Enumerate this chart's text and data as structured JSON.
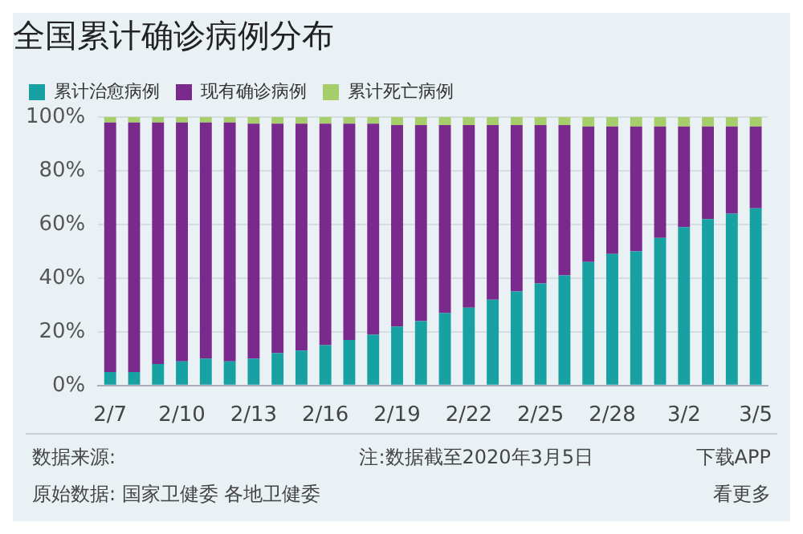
{
  "chart_data": {
    "type": "bar",
    "title": "全国累计确诊病例分布",
    "stacked": true,
    "grid": "y",
    "legend": "top left",
    "categories": [
      "2/7",
      null,
      null,
      "2/10",
      null,
      null,
      "2/13",
      null,
      null,
      "2/16",
      null,
      null,
      "2/19",
      null,
      null,
      "2/22",
      null,
      null,
      "2/25",
      null,
      null,
      "2/28",
      null,
      null,
      "3/2",
      null,
      null,
      "3/5"
    ],
    "series": [
      {
        "name": "累计治愈病例",
        "color": "#17a1a3",
        "values": [
          5,
          5,
          8,
          9,
          10,
          9,
          10,
          12,
          13,
          15,
          17,
          19,
          22,
          24,
          27,
          29,
          32,
          35,
          38,
          41,
          46,
          49,
          50,
          55,
          59,
          62,
          64,
          66
        ]
      },
      {
        "name": "现有确诊病例",
        "color": "#7a2a8c",
        "values": [
          93,
          93,
          90,
          89,
          88,
          89,
          87.5,
          85.5,
          84.5,
          82.5,
          80.5,
          78.5,
          75,
          73,
          70,
          68,
          65,
          62,
          59,
          56,
          50.5,
          47.5,
          46.5,
          41.5,
          37.5,
          34.5,
          32.5,
          30.5
        ]
      },
      {
        "name": "累计死亡病例",
        "color": "#a6cf6b",
        "values": [
          2,
          2,
          2,
          2,
          2,
          2,
          2.5,
          2.5,
          2.5,
          2.5,
          2.5,
          2.5,
          3,
          3,
          3,
          3,
          3,
          3,
          3,
          3,
          3.5,
          3.5,
          3.5,
          3.5,
          3.5,
          3.5,
          3.5,
          3.5
        ]
      }
    ],
    "ylim": [
      0,
      100
    ],
    "yticks": [
      {
        "value": 0,
        "label": "0%"
      },
      {
        "value": 20,
        "label": "20%"
      },
      {
        "value": 40,
        "label": "40%"
      },
      {
        "value": 60,
        "label": "60%"
      },
      {
        "value": 80,
        "label": "80%"
      },
      {
        "value": 100,
        "label": "100%"
      }
    ],
    "annotations": [
      "数据来源:",
      "注:数据截至2020年3月5日",
      "下载APP",
      "原始数据: 国家卫健委 各地卫健委",
      "看更多"
    ]
  }
}
